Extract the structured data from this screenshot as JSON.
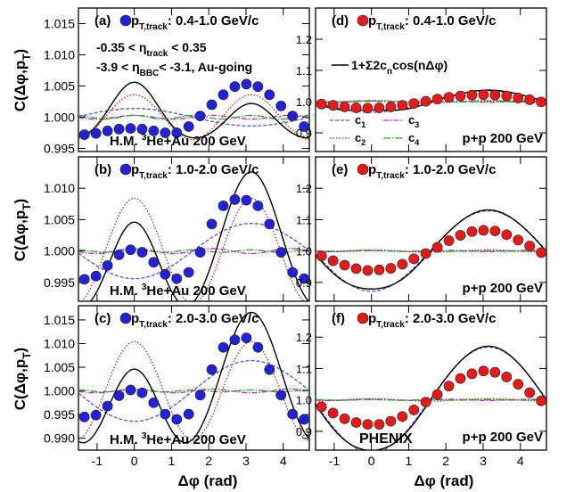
{
  "figure": {
    "experiment_label": "PHENIX",
    "left_ylabel": "C(Δφ,p",
    "left_ylabel_sub": "T",
    "left_ylabel_tail": ")",
    "xlabel": "Δφ (rad)",
    "fit_label_main": "1+Σ2c",
    "fit_label_sub": "n",
    "fit_label_tail": "cos(nΔφ)",
    "legend_c1": "c",
    "legend_c1_sub": "1",
    "legend_c2": "c",
    "legend_c2_sub": "2",
    "legend_c3": "c",
    "legend_c3_sub": "3",
    "legend_c4": "c",
    "legend_c4_sub": "4",
    "cut_eta_track_pre": "-0.35 < η",
    "cut_eta_track_sub": "track",
    "cut_eta_track_post": " < 0.35",
    "cut_eta_bbc_pre": "-3.9 < η",
    "cut_eta_bbc_sub": "BBC",
    "cut_eta_bbc_post": "< -3.1, Au-going"
  },
  "colors": {
    "he_marker": "#2323d4",
    "pp_marker": "#e31b1b",
    "c1": "#5555cc",
    "c2": "#cc2222",
    "c3": "#cc22cc",
    "c4": "#22aa22",
    "fit": "#000000"
  },
  "chart_data": [
    {
      "id": "a",
      "type": "scatter",
      "system": "he",
      "label": "(a)",
      "pt_pre": " p",
      "pt_sub": "T,track",
      "pt_post": ": 0.4-1.0 GeV/c",
      "system_text": "H.M. ",
      "system_sup": "3",
      "system_post": "He+Au 200 GeV",
      "xlim": [
        -1.5,
        4.7
      ],
      "ylim": [
        0.9945,
        1.0175
      ],
      "yticks": [
        "1.015",
        "1.010",
        "1.005",
        "1.000",
        "0.995"
      ],
      "ytick_values": [
        1.015,
        1.01,
        1.005,
        1.0,
        0.995
      ],
      "xticks": [
        "-1",
        "0",
        "1",
        "2",
        "3",
        "4"
      ],
      "c": [
        0.0007,
        0.0018,
        0.00015,
        0.00015
      ],
      "base": 1.0,
      "x": [
        -1.34,
        -1.03,
        -0.72,
        -0.41,
        -0.1,
        0.21,
        0.52,
        0.83,
        1.14,
        1.46,
        1.77,
        2.08,
        2.39,
        2.7,
        3.01,
        3.32,
        3.63,
        3.94,
        4.25,
        4.56
      ],
      "y": [
        0.9972,
        0.9974,
        0.9978,
        0.9981,
        0.9982,
        0.9981,
        0.9978,
        0.9975,
        0.9975,
        0.9985,
        1.0002,
        1.002,
        1.0036,
        1.0049,
        1.0053,
        1.0049,
        1.0036,
        1.0018,
        1.0002,
        0.9985
      ]
    },
    {
      "id": "b",
      "type": "scatter",
      "system": "he",
      "label": "(b)",
      "pt_pre": " p",
      "pt_sub": "T,track",
      "pt_post": ": 1.0-2.0 GeV/c",
      "system_text": "H.M. ",
      "system_sup": "3",
      "system_post": "He+Au 200 GeV",
      "xlim": [
        -1.5,
        4.7
      ],
      "ylim": [
        0.992,
        1.015
      ],
      "yticks": [
        "1.010",
        "1.005",
        "1.000",
        "0.995"
      ],
      "ytick_values": [
        1.01,
        1.005,
        1.0,
        0.995
      ],
      "xticks": [
        "-1",
        "0",
        "1",
        "2",
        "3",
        "4"
      ],
      "c": [
        -0.0022,
        0.0042,
        0.0002,
        0.0001
      ],
      "base": 1.0,
      "x": [
        -1.34,
        -1.03,
        -0.72,
        -0.41,
        -0.1,
        0.21,
        0.52,
        0.83,
        1.14,
        1.46,
        1.77,
        2.08,
        2.39,
        2.7,
        3.01,
        3.32,
        3.63,
        3.94,
        4.25,
        4.56
      ],
      "y": [
        0.9955,
        0.996,
        0.9977,
        0.9994,
        1.0002,
        0.9998,
        0.9982,
        0.9963,
        0.9956,
        0.9966,
        0.9998,
        1.0043,
        1.0072,
        1.0082,
        1.0081,
        1.0072,
        1.0043,
        0.9998,
        0.9966,
        0.9956
      ]
    },
    {
      "id": "c",
      "type": "scatter",
      "system": "he",
      "label": "(c)",
      "pt_pre": " p",
      "pt_sub": "T,track",
      "pt_post": ": 2.0-3.0 GeV/c",
      "system_text": "H.M. ",
      "system_sup": "3",
      "system_post": "He+Au 200 GeV",
      "xlim": [
        -1.5,
        4.7
      ],
      "ylim": [
        0.9875,
        1.018
      ],
      "yticks": [
        "1.015",
        "1.010",
        "1.005",
        "1.000",
        "0.995",
        "0.990"
      ],
      "ytick_values": [
        1.015,
        1.01,
        1.005,
        1.0,
        0.995,
        0.99
      ],
      "xticks": [
        "-1",
        "0",
        "1",
        "2",
        "3",
        "4"
      ],
      "c": [
        -0.0032,
        0.0052,
        0.0002,
        0.0001
      ],
      "base": 1.0,
      "x": [
        -1.34,
        -1.03,
        -0.72,
        -0.41,
        -0.1,
        0.21,
        0.52,
        0.83,
        1.14,
        1.46,
        1.77,
        2.08,
        2.39,
        2.7,
        3.01,
        3.32,
        3.63,
        3.94,
        4.25,
        4.56
      ],
      "y": [
        0.9945,
        0.9949,
        0.9968,
        0.999,
        1.0002,
        0.9996,
        0.9975,
        0.9951,
        0.994,
        0.9951,
        0.9991,
        1.0045,
        1.0092,
        1.0108,
        1.0112,
        1.0092,
        1.0045,
        0.9991,
        0.9951,
        0.994
      ]
    },
    {
      "id": "d",
      "type": "scatter",
      "system": "pp",
      "label": "(d)",
      "pt_pre": " p",
      "pt_sub": "T,track",
      "pt_post": ": 0.4-1.0 GeV/c",
      "system_text": "p+p 200 GeV",
      "xlim": [
        -1.5,
        4.7
      ],
      "ylim": [
        0.84,
        1.3
      ],
      "yticks": [
        "1.2",
        "1.1",
        "1.0",
        "0.9"
      ],
      "ytick_values": [
        1.2,
        1.1,
        1.0,
        0.9
      ],
      "xticks": [
        "-1",
        "0",
        "1",
        "2",
        "3",
        "4"
      ],
      "c": [
        -0.017,
        0.002,
        0.001,
        0.0005
      ],
      "base": 1.0,
      "x": [
        -1.34,
        -1.03,
        -0.72,
        -0.41,
        -0.1,
        0.21,
        0.52,
        0.83,
        1.14,
        1.46,
        1.77,
        2.08,
        2.39,
        2.7,
        3.01,
        3.32,
        3.63,
        3.94,
        4.25,
        4.56
      ],
      "y": [
        0.992,
        0.988,
        0.983,
        0.98,
        0.979,
        0.98,
        0.983,
        0.988,
        0.994,
        1.001,
        1.008,
        1.014,
        1.018,
        1.021,
        1.022,
        1.021,
        1.018,
        1.012,
        1.006,
        0.999
      ]
    },
    {
      "id": "e",
      "type": "scatter",
      "system": "pp",
      "label": "(e)",
      "pt_pre": " p",
      "pt_sub": "T,track",
      "pt_post": ": 1.0-2.0 GeV/c",
      "system_text": "p+p 200 GeV",
      "xlim": [
        -1.5,
        4.7
      ],
      "ylim": [
        0.84,
        1.3
      ],
      "yticks": [
        "1.2",
        "1.1",
        "1.0",
        "0.9"
      ],
      "ytick_values": [
        1.2,
        1.1,
        1.0,
        0.9
      ],
      "xticks": [
        "-1",
        "0",
        "1",
        "2",
        "3",
        "4"
      ],
      "c": [
        -0.064,
        0.002,
        0.001,
        0.0005
      ],
      "base": 1.0,
      "x": [
        -1.34,
        -1.03,
        -0.72,
        -0.41,
        -0.1,
        0.21,
        0.52,
        0.83,
        1.14,
        1.46,
        1.77,
        2.08,
        2.39,
        2.7,
        3.01,
        3.32,
        3.63,
        3.94,
        4.25,
        4.56
      ],
      "y": [
        0.984,
        0.969,
        0.955,
        0.944,
        0.938,
        0.94,
        0.945,
        0.958,
        0.975,
        0.992,
        1.012,
        1.033,
        1.05,
        1.062,
        1.066,
        1.064,
        1.052,
        1.035,
        1.016,
        0.995
      ]
    },
    {
      "id": "f",
      "type": "scatter",
      "system": "pp",
      "label": "(f)",
      "pt_pre": " p",
      "pt_sub": "T,track",
      "pt_post": ": 2.0-3.0 GeV/c",
      "system_text": "p+p 200 GeV",
      "xlim": [
        -1.5,
        4.7
      ],
      "ylim": [
        0.84,
        1.3
      ],
      "yticks": [
        "1.2",
        "1.1",
        "1.0",
        "0.9"
      ],
      "ytick_values": [
        1.2,
        1.1,
        1.0,
        0.9
      ],
      "xticks": [
        "-1",
        "0",
        "1",
        "2",
        "3",
        "4"
      ],
      "c": [
        -0.084,
        0.002,
        0.001,
        0.0005
      ],
      "base": 1.0,
      "x": [
        -1.34,
        -1.03,
        -0.72,
        -0.41,
        -0.1,
        0.21,
        0.52,
        0.83,
        1.14,
        1.46,
        1.77,
        2.08,
        2.39,
        2.7,
        3.01,
        3.32,
        3.63,
        3.94,
        4.25,
        4.56
      ],
      "y": [
        0.978,
        0.958,
        0.94,
        0.928,
        0.922,
        0.922,
        0.932,
        0.947,
        0.968,
        0.993,
        1.017,
        1.044,
        1.068,
        1.083,
        1.092,
        1.088,
        1.073,
        1.05,
        1.023,
        0.997
      ]
    }
  ]
}
